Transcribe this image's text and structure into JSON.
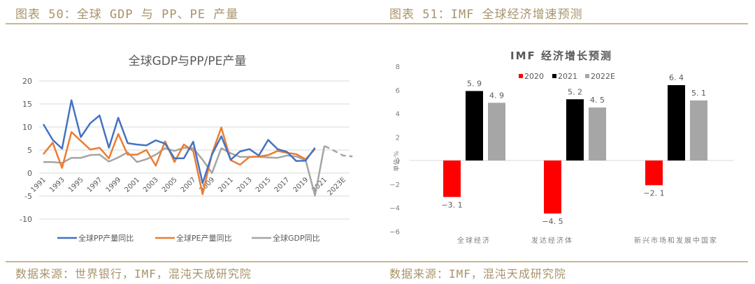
{
  "left_panel": {
    "figure_title": "图表 50：全球 GDP 与 PP、PE 产量",
    "source": "数据来源：世界银行，IMF，混沌天成研究院"
  },
  "right_panel": {
    "figure_title": "图表 51：IMF 全球经济增速预测",
    "source": "数据来源：IMF，混沌天成研究院"
  },
  "colors": {
    "pp": "#4472c4",
    "pe": "#ed7d31",
    "gdp": "#a5a5a5",
    "bar_2020": "#ff0000",
    "bar_2021": "#000000",
    "bar_2022e": "#a6a6a6",
    "accent": "#a8936a"
  },
  "chart_data": [
    {
      "type": "line",
      "title": "全球GDP与PP/PE产量",
      "xlabel": "",
      "ylabel": "",
      "ylim": [
        -10,
        20
      ],
      "yticks": [
        20,
        15,
        10,
        5,
        0,
        -5,
        -10
      ],
      "grid": true,
      "legend_position": "bottom",
      "x": [
        "1991",
        "1992",
        "1993",
        "1994",
        "1995",
        "1996",
        "1997",
        "1998",
        "1999",
        "2000",
        "2001",
        "2002",
        "2003",
        "2004",
        "2005",
        "2006",
        "2007",
        "2008",
        "2009",
        "2010",
        "2011",
        "2012",
        "2013",
        "2014",
        "2015",
        "2016",
        "2017",
        "2018",
        "2019",
        "2020",
        "2021",
        "2022E",
        "2023E",
        "2024E"
      ],
      "xtick_labels": [
        "1991",
        "1993",
        "1995",
        "1997",
        "1999",
        "2001",
        "2003",
        "2005",
        "2007",
        "2009",
        "2011",
        "2013",
        "2015",
        "2017",
        "2019",
        "2021",
        "2023E"
      ],
      "series": [
        {
          "name": "全球PP产量同比",
          "style": "solid",
          "values": [
            10.6,
            7.2,
            5.3,
            15.8,
            7.8,
            10.8,
            12.5,
            5.5,
            12.0,
            6.5,
            6.2,
            6.0,
            7.1,
            6.4,
            3.2,
            3.2,
            6.8,
            -2.2,
            4.0,
            8.0,
            2.9,
            4.7,
            5.2,
            3.8,
            7.2,
            5.2,
            4.6,
            2.6,
            2.7,
            5.5,
            null,
            null,
            null,
            null
          ]
        },
        {
          "name": "全球PE产量同比",
          "style": "solid",
          "values": [
            4.1,
            6.6,
            1.1,
            8.9,
            7.0,
            5.1,
            5.5,
            3.2,
            8.5,
            4.0,
            4.0,
            5.0,
            1.6,
            6.9,
            2.4,
            6.2,
            4.8,
            -4.6,
            4.2,
            9.9,
            2.8,
            1.8,
            3.5,
            3.6,
            3.9,
            4.8,
            4.4,
            4.1,
            3.0,
            5.2,
            null,
            null,
            null,
            null
          ]
        },
        {
          "name": "全球GDP同比",
          "style": "solid_then_dashed_from_2021",
          "values": [
            2.4,
            2.4,
            2.2,
            3.3,
            3.3,
            3.9,
            4.0,
            2.5,
            3.4,
            4.5,
            2.4,
            3.0,
            4.0,
            5.4,
            4.8,
            5.5,
            5.4,
            2.9,
            0.0,
            5.4,
            4.3,
            3.5,
            3.5,
            3.5,
            3.4,
            3.3,
            3.8,
            3.6,
            2.8,
            -4.9,
            5.9,
            4.9,
            3.8,
            3.6
          ]
        }
      ]
    },
    {
      "type": "bar",
      "title": "IMF 经济增长预测",
      "xlabel": "",
      "ylabel": "单位:%",
      "ylim": [
        -6,
        8
      ],
      "yticks": [
        8,
        6,
        4,
        2,
        0,
        -2,
        -4,
        -6
      ],
      "grid": false,
      "legend_position": "top",
      "categories": [
        "全球经济",
        "发达经济体",
        "新兴市场和发展中国家"
      ],
      "series": [
        {
          "name": "2020",
          "values": [
            -3.1,
            -4.5,
            -2.1
          ],
          "labels": [
            "-3.1",
            "-4.5",
            "-2.1"
          ]
        },
        {
          "name": "2021",
          "values": [
            5.9,
            5.2,
            6.4
          ],
          "labels": [
            "5.9",
            "5.2",
            "6.4"
          ]
        },
        {
          "name": "2022E",
          "values": [
            4.9,
            4.5,
            5.1
          ],
          "labels": [
            "4.9",
            "4.5",
            "5.1"
          ]
        }
      ]
    }
  ]
}
